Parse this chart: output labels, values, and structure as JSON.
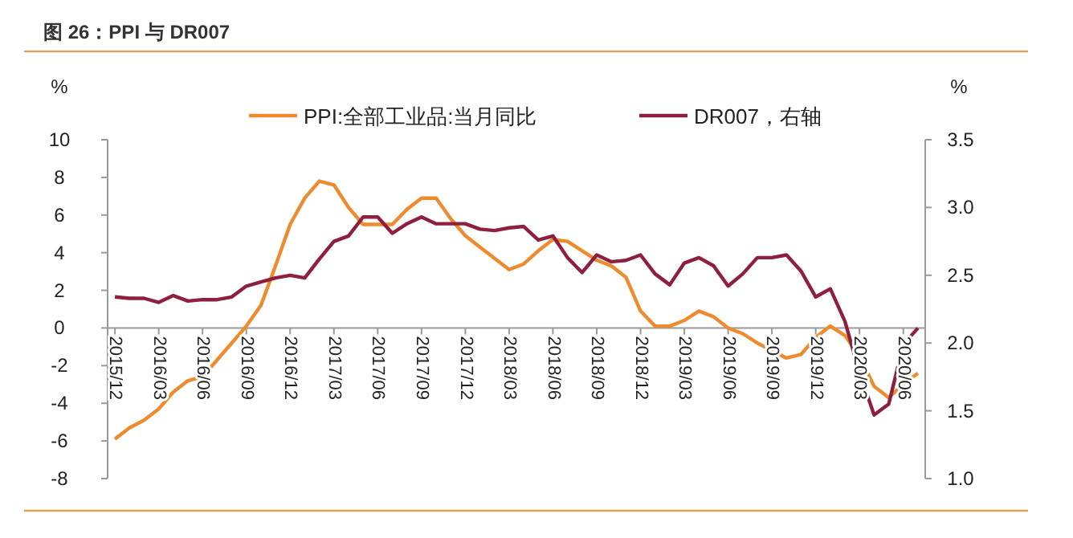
{
  "chart_data": {
    "type": "line",
    "title": "图 26：PPI 与 DR007",
    "ylabel": "%",
    "y2label": "%",
    "categories": [
      "2015/12",
      null,
      null,
      "2016/03",
      null,
      null,
      "2016/06",
      null,
      null,
      "2016/09",
      null,
      null,
      "2016/12",
      null,
      null,
      "2017/03",
      null,
      null,
      "2017/06",
      null,
      null,
      "2017/09",
      null,
      null,
      "2017/12",
      null,
      null,
      "2018/03",
      null,
      null,
      "2018/06",
      null,
      null,
      "2018/09",
      null,
      null,
      "2018/12",
      null,
      null,
      "2019/03",
      null,
      null,
      "2019/06",
      null,
      null,
      "2019/09",
      null,
      null,
      "2019/12",
      null,
      null,
      "2020/03",
      null,
      null,
      "2020/06",
      null
    ],
    "series": [
      {
        "name": "PPI:全部工业品:当月同比",
        "color": "#ed8b2e",
        "values": [
          -5.9,
          -5.3,
          -4.9,
          -4.3,
          -3.4,
          -2.8,
          -2.6,
          -1.7,
          -0.8,
          0.1,
          1.2,
          3.3,
          5.5,
          6.9,
          7.8,
          7.6,
          6.4,
          5.5,
          5.5,
          5.5,
          6.3,
          6.9,
          6.9,
          5.8,
          4.9,
          4.3,
          3.7,
          3.1,
          3.4,
          4.1,
          4.7,
          4.6,
          4.1,
          3.6,
          3.3,
          2.7,
          0.9,
          0.1,
          0.1,
          0.4,
          0.9,
          0.6,
          0.0,
          -0.3,
          -0.8,
          -1.2,
          -1.6,
          -1.4,
          -0.5,
          0.1,
          -0.4,
          -1.5,
          -3.1,
          -3.7,
          -3.0,
          -2.4
        ]
      },
      {
        "name": "DR007，右轴",
        "color": "#8e1f3f",
        "axis": "y2",
        "values": [
          2.34,
          2.33,
          2.33,
          2.3,
          2.35,
          2.31,
          2.32,
          2.32,
          2.34,
          2.42,
          2.45,
          2.48,
          2.5,
          2.48,
          2.62,
          2.75,
          2.79,
          2.93,
          2.93,
          2.81,
          2.88,
          2.93,
          2.88,
          2.88,
          2.88,
          2.84,
          2.83,
          2.85,
          2.86,
          2.76,
          2.79,
          2.63,
          2.52,
          2.65,
          2.6,
          2.61,
          2.65,
          2.51,
          2.43,
          2.59,
          2.63,
          2.57,
          2.42,
          2.51,
          2.63,
          2.63,
          2.65,
          2.53,
          2.34,
          2.4,
          2.16,
          1.78,
          1.47,
          1.55,
          1.99,
          2.11
        ]
      }
    ],
    "ylim": [
      -8,
      10
    ],
    "yticks": [
      -8,
      -6,
      -4,
      -2,
      0,
      2,
      4,
      6,
      8,
      10
    ],
    "y2lim": [
      1.0,
      3.5
    ],
    "y2ticks": [
      {
        "value": 1.0,
        "label": "1.0"
      },
      {
        "value": 1.5,
        "label": "1.5"
      },
      {
        "value": 2.0,
        "label": "2.0"
      },
      {
        "value": 2.5,
        "label": "2.5"
      },
      {
        "value": 3.0,
        "label": "3.0"
      },
      {
        "value": 3.5,
        "label": "3.5"
      }
    ],
    "legend": "top"
  }
}
